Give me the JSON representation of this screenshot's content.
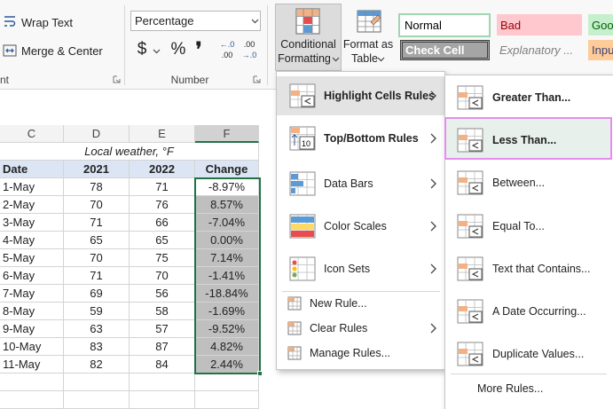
{
  "ribbon": {
    "wrap_text": "Wrap Text",
    "merge_center": "Merge & Center",
    "alignment_group": "nt",
    "number_format": "Percentage",
    "currency": "$",
    "percent": "%",
    "comma": "❜",
    "increase_decimal": [
      "←.0",
      ".00"
    ],
    "decrease_decimal": [
      ".00",
      "→.0"
    ],
    "number_group": "Number",
    "conditional_formatting": [
      "Conditional",
      "Formatting"
    ],
    "format_as_table": [
      "Format as",
      "Table"
    ],
    "styles": [
      "Normal",
      "Bad",
      "Goo",
      "Check Cell",
      "Explanatory ...",
      "Inpu"
    ]
  },
  "sheet": {
    "columns": [
      "C",
      "D",
      "E",
      "F"
    ],
    "title": "Local weather, °F",
    "header": [
      "Date",
      "2021",
      "2022",
      "Change"
    ],
    "rows": [
      [
        "1-May",
        "78",
        "71",
        "-8.97%"
      ],
      [
        "2-May",
        "70",
        "76",
        "8.57%"
      ],
      [
        "3-May",
        "71",
        "66",
        "-7.04%"
      ],
      [
        "4-May",
        "65",
        "65",
        "0.00%"
      ],
      [
        "5-May",
        "70",
        "75",
        "7.14%"
      ],
      [
        "6-May",
        "71",
        "70",
        "-1.41%"
      ],
      [
        "7-May",
        "69",
        "56",
        "-18.84%"
      ],
      [
        "8-May",
        "59",
        "58",
        "-1.69%"
      ],
      [
        "9-May",
        "63",
        "57",
        "-9.52%"
      ],
      [
        "10-May",
        "83",
        "87",
        "4.82%"
      ],
      [
        "11-May",
        "82",
        "84",
        "2.44%"
      ]
    ]
  },
  "menu": {
    "items": [
      "Highlight Cells Rules",
      "Top/Bottom Rules",
      "Data Bars",
      "Color Scales",
      "Icon Sets"
    ],
    "small_items": [
      "New Rule...",
      "Clear Rules",
      "Manage Rules..."
    ]
  },
  "submenu": {
    "items": [
      "Greater Than...",
      "Less Than...",
      "Between...",
      "Equal To...",
      "Text that Contains...",
      "A Date Occurring...",
      "Duplicate Values..."
    ],
    "more": "More Rules..."
  }
}
